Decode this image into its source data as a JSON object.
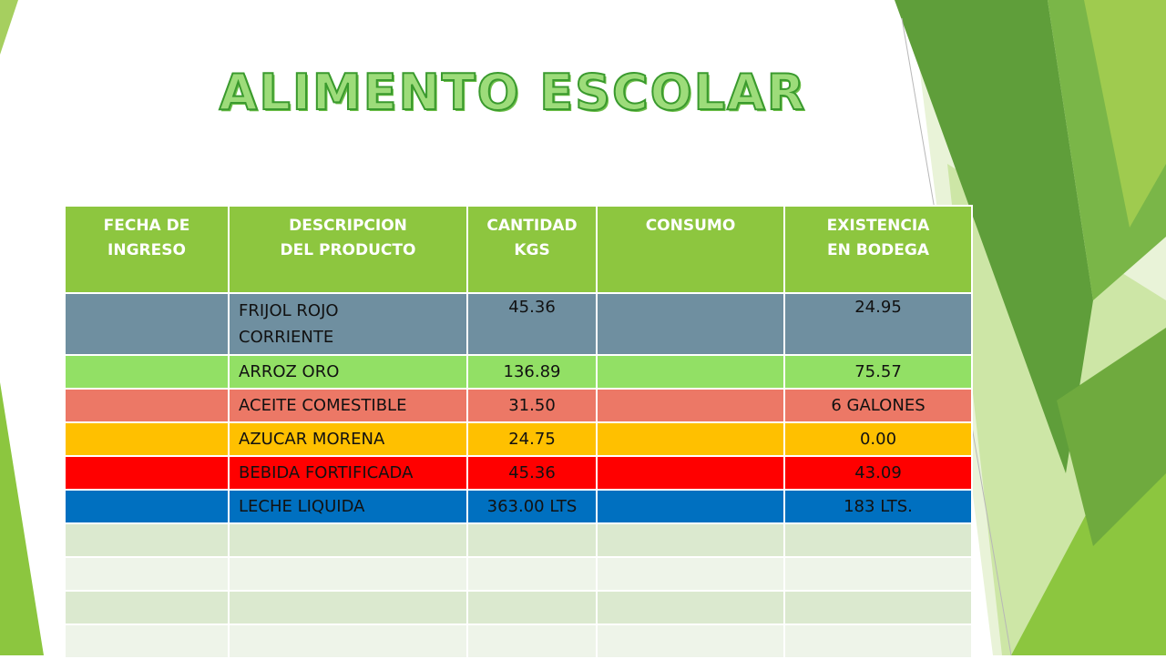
{
  "title": "ALIMENTO ESCOLAR",
  "table": {
    "headers": [
      {
        "line1": "FECHA DE",
        "line2": "INGRESO"
      },
      {
        "line1": "DESCRIPCION",
        "line2": "DEL PRODUCTO"
      },
      {
        "line1": "CANTIDAD",
        "line2": "KGS"
      },
      {
        "line1": "CONSUMO",
        "line2": ""
      },
      {
        "line1": "EXISTENCIA",
        "line2": "EN BODEGA"
      }
    ],
    "rows": [
      {
        "fecha": "",
        "descripcion_line1": "FRIJOL ROJO",
        "descripcion_line2": "CORRIENTE",
        "cantidad": "45.36",
        "consumo": "",
        "existencia": "24.95",
        "color": "#6f8fa0"
      },
      {
        "fecha": "",
        "descripcion_line1": "ARROZ ORO",
        "descripcion_line2": "",
        "cantidad": "136.89",
        "consumo": "",
        "existencia": "75.57",
        "color": "#92e065"
      },
      {
        "fecha": "",
        "descripcion_line1": "ACEITE COMESTIBLE",
        "descripcion_line2": "",
        "cantidad": "31.50",
        "consumo": "",
        "existencia": "6 GALONES",
        "color": "#ec7866"
      },
      {
        "fecha": "",
        "descripcion_line1": "AZUCAR MORENA",
        "descripcion_line2": "",
        "cantidad": "24.75",
        "consumo": "",
        "existencia": "0.00",
        "color": "#ffc000"
      },
      {
        "fecha": "",
        "descripcion_line1": "BEBIDA FORTIFICADA",
        "descripcion_line2": "",
        "cantidad": "45.36",
        "consumo": "",
        "existencia": "43.09",
        "color": "#ff0000"
      },
      {
        "fecha": "",
        "descripcion_line1": "LECHE LIQUIDA",
        "descripcion_line2": "",
        "cantidad": "363.00 LTS",
        "consumo": "",
        "existencia": "183 LTS.",
        "color": "#0070c0"
      },
      {
        "fecha": "",
        "descripcion_line1": "",
        "descripcion_line2": "",
        "cantidad": "",
        "consumo": "",
        "existencia": "",
        "color": "#dbe9cf"
      },
      {
        "fecha": "",
        "descripcion_line1": "",
        "descripcion_line2": "",
        "cantidad": "",
        "consumo": "",
        "existencia": "",
        "color": "#eef4e9"
      },
      {
        "fecha": "",
        "descripcion_line1": "",
        "descripcion_line2": "",
        "cantidad": "",
        "consumo": "",
        "existencia": "",
        "color": "#dbe9cf"
      },
      {
        "fecha": "",
        "descripcion_line1": "",
        "descripcion_line2": "",
        "cantidad": "",
        "consumo": "",
        "existencia": "",
        "color": "#eef4e9"
      }
    ]
  },
  "colors": {
    "header_bg": "#8dc63f",
    "title_fill": "#9ddc7a",
    "title_stroke": "#3a9a2e",
    "accent_dark": "#5f9e3a",
    "accent_mid": "#7ab648",
    "accent_light": "#a6cf5f"
  }
}
